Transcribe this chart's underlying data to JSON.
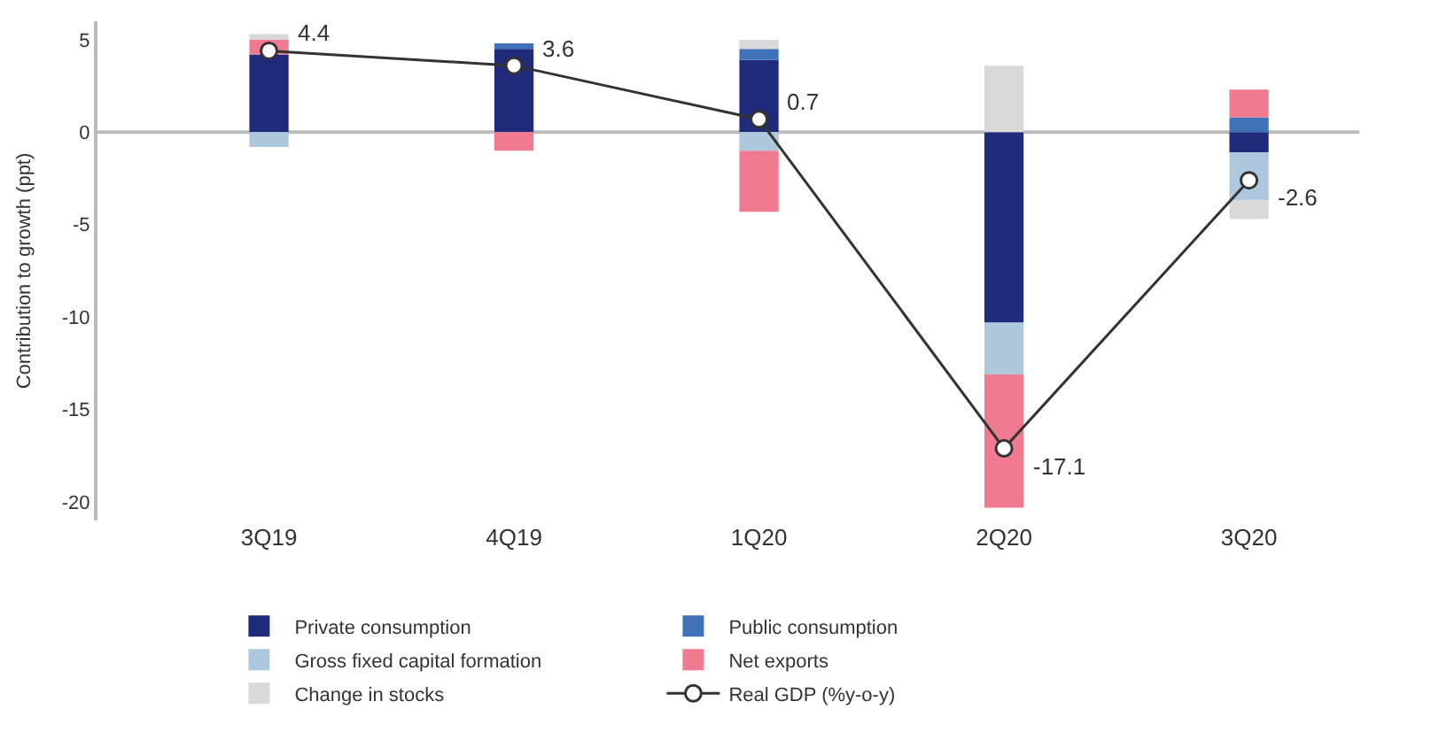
{
  "chart_data": {
    "type": "bar",
    "stacked": true,
    "ylabel": "Contribution to growth (ppt)",
    "categories": [
      "3Q19",
      "4Q19",
      "1Q20",
      "2Q20",
      "3Q20"
    ],
    "series": [
      {
        "name": "Private consumption",
        "color": "#1f2a7a",
        "values": [
          4.2,
          4.5,
          3.9,
          -10.3,
          -1.1
        ]
      },
      {
        "name": "Public consumption",
        "color": "#3f72b8",
        "values": [
          null,
          0.3,
          0.6,
          null,
          0.8
        ]
      },
      {
        "name": "Gross fixed capital formation",
        "color": "#adc8dc",
        "values": [
          -0.8,
          null,
          -1.0,
          -2.8,
          -2.6
        ]
      },
      {
        "name": "Net exports",
        "color": "#f07a90",
        "values": [
          0.8,
          -1.0,
          -3.3,
          -7.2,
          1.5
        ]
      },
      {
        "name": "Change in stocks",
        "color": "#d9d9d9",
        "values": [
          0.3,
          null,
          0.5,
          3.6,
          -1.0
        ]
      },
      {
        "name": "Real GDP (%y-o-y)",
        "type": "line",
        "color": "#333333",
        "marker": "circle",
        "values": [
          4.4,
          3.6,
          0.7,
          -17.1,
          -2.6
        ],
        "value_labels": [
          "4.4",
          "3.6",
          "0.7",
          "-17.1",
          "-2.6"
        ]
      }
    ],
    "ylim": [
      -21,
      6
    ],
    "yticks": [
      -20,
      -15,
      -10,
      -5,
      0,
      5
    ],
    "grid": false,
    "legend": "bottom",
    "ref_lines": [
      {
        "axis": "y",
        "value": 0,
        "color": "#bbbbbb"
      }
    ]
  }
}
